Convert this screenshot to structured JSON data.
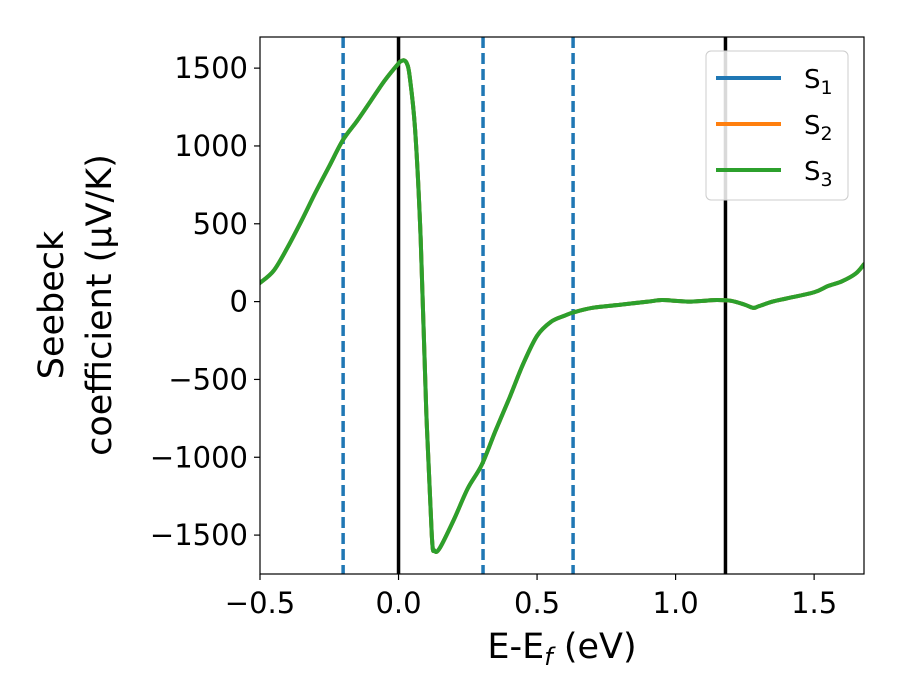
{
  "chart_data": {
    "type": "line",
    "xlabel": {
      "main": "E-E",
      "sub": "f",
      "unit": " (eV)"
    },
    "ylabel": {
      "line1": "Seebeck",
      "line2": "coefficient  (μV/K)"
    },
    "xlim": [
      -0.5,
      1.68
    ],
    "ylim": [
      -1750,
      1700
    ],
    "xticks": [
      -0.5,
      0.0,
      0.5,
      1.0,
      1.5
    ],
    "xtick_labels": [
      "−0.5",
      "0.0",
      "0.5",
      "1.0",
      "1.5"
    ],
    "yticks": [
      1500,
      1000,
      500,
      0,
      -500,
      -1000,
      -1500
    ],
    "ytick_labels": [
      "1500",
      "1000",
      "500",
      "0",
      "−500",
      "−1000",
      "−1500"
    ],
    "vlines_solid": [
      0.0,
      1.18
    ],
    "vlines_dashed": [
      -0.2,
      0.305,
      0.63
    ],
    "legend_position": "top-right",
    "series": [
      {
        "name": "S",
        "sub": "1",
        "color": "#1f77b4",
        "x": [
          -0.5,
          -0.45,
          -0.4,
          -0.35,
          -0.3,
          -0.25,
          -0.2,
          -0.15,
          -0.1,
          -0.05,
          0.0,
          0.01,
          0.02,
          0.03,
          0.04,
          0.06,
          0.08,
          0.1,
          0.12,
          0.13,
          0.15,
          0.2,
          0.25,
          0.3,
          0.35,
          0.4,
          0.45,
          0.5,
          0.55,
          0.6,
          0.63,
          0.7,
          0.8,
          0.9,
          0.95,
          1.0,
          1.05,
          1.1,
          1.15,
          1.2,
          1.25,
          1.28,
          1.3,
          1.35,
          1.4,
          1.5,
          1.55,
          1.6,
          1.65,
          1.68
        ],
        "y": [
          120,
          200,
          350,
          520,
          700,
          870,
          1040,
          1160,
          1290,
          1420,
          1530,
          1545,
          1550,
          1530,
          1450,
          1100,
          400,
          -700,
          -1500,
          -1600,
          -1580,
          -1400,
          -1200,
          -1050,
          -830,
          -620,
          -400,
          -220,
          -130,
          -90,
          -70,
          -40,
          -20,
          0,
          10,
          5,
          0,
          5,
          10,
          5,
          -20,
          -40,
          -30,
          0,
          20,
          60,
          100,
          130,
          180,
          240
        ]
      },
      {
        "name": "S",
        "sub": "2",
        "color": "#ff7f0e",
        "x": [
          -0.5,
          -0.45,
          -0.4,
          -0.35,
          -0.3,
          -0.25,
          -0.2,
          -0.15,
          -0.1,
          -0.05,
          0.0,
          0.01,
          0.02,
          0.03,
          0.04,
          0.06,
          0.08,
          0.1,
          0.12,
          0.13,
          0.15,
          0.2,
          0.25,
          0.3,
          0.35,
          0.4,
          0.45,
          0.5,
          0.55,
          0.6,
          0.63,
          0.7,
          0.8,
          0.9,
          0.95,
          1.0,
          1.05,
          1.1,
          1.15,
          1.2,
          1.25,
          1.28,
          1.3,
          1.35,
          1.4,
          1.5,
          1.55,
          1.6,
          1.65,
          1.68
        ],
        "y": [
          120,
          200,
          350,
          520,
          700,
          870,
          1040,
          1160,
          1290,
          1420,
          1530,
          1545,
          1550,
          1530,
          1450,
          1100,
          400,
          -700,
          -1500,
          -1600,
          -1580,
          -1400,
          -1200,
          -1050,
          -830,
          -620,
          -400,
          -220,
          -130,
          -90,
          -70,
          -40,
          -20,
          0,
          10,
          5,
          0,
          5,
          10,
          5,
          -20,
          -40,
          -30,
          0,
          20,
          60,
          100,
          130,
          180,
          240
        ]
      },
      {
        "name": "S",
        "sub": "3",
        "color": "#2ca02c",
        "x": [
          -0.5,
          -0.45,
          -0.4,
          -0.35,
          -0.3,
          -0.25,
          -0.2,
          -0.15,
          -0.1,
          -0.05,
          0.0,
          0.01,
          0.02,
          0.03,
          0.04,
          0.06,
          0.08,
          0.1,
          0.12,
          0.13,
          0.15,
          0.2,
          0.25,
          0.3,
          0.35,
          0.4,
          0.45,
          0.5,
          0.55,
          0.6,
          0.63,
          0.7,
          0.8,
          0.9,
          0.95,
          1.0,
          1.05,
          1.1,
          1.15,
          1.2,
          1.25,
          1.28,
          1.3,
          1.35,
          1.4,
          1.5,
          1.55,
          1.6,
          1.65,
          1.68
        ],
        "y": [
          120,
          200,
          350,
          520,
          700,
          870,
          1040,
          1160,
          1290,
          1420,
          1530,
          1545,
          1550,
          1530,
          1450,
          1100,
          400,
          -700,
          -1500,
          -1600,
          -1580,
          -1400,
          -1200,
          -1050,
          -830,
          -620,
          -400,
          -220,
          -130,
          -90,
          -70,
          -40,
          -20,
          0,
          10,
          5,
          0,
          5,
          10,
          5,
          -20,
          -40,
          -30,
          0,
          20,
          60,
          100,
          130,
          180,
          240
        ]
      }
    ],
    "colors": {
      "dashed_vline": "#1f77b4",
      "solid_vline": "#000000"
    }
  }
}
